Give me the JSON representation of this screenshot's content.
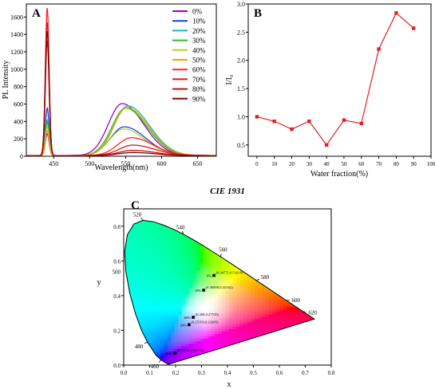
{
  "chart_data": [
    {
      "panel": "A",
      "type": "line",
      "xlabel": "Wavelength(nm)",
      "ylabel": "PL Intensity",
      "xlim": [
        412,
        676
      ],
      "ylim": [
        0,
        1750
      ],
      "xticks": [
        450,
        500,
        550,
        600,
        650
      ],
      "yticks": [
        0,
        200,
        400,
        600,
        800,
        1000,
        1200,
        1400,
        1600
      ],
      "legend_position": "top-right",
      "series": [
        {
          "name": "0%",
          "color": "#a000d0",
          "peak1": 250,
          "peak2": 597,
          "center2": 545
        },
        {
          "name": "10%",
          "color": "#1840e0",
          "peak1": 545,
          "peak2": 330,
          "center2": 548
        },
        {
          "name": "20%",
          "color": "#18b8b8",
          "peak1": 410,
          "peak2": 570,
          "center2": 553
        },
        {
          "name": "30%",
          "color": "#20c020",
          "peak1": 380,
          "peak2": 545,
          "center2": 550
        },
        {
          "name": "40%",
          "color": "#b8d020",
          "peak1": 330,
          "peak2": 305,
          "center2": 547
        },
        {
          "name": "50%",
          "color": "#f0a000",
          "peak1": 285,
          "peak2": 550,
          "center2": 552
        },
        {
          "name": "60%",
          "color": "#ff2020",
          "peak1": 1695,
          "peak2": 205,
          "center2": 558
        },
        {
          "name": "70%",
          "color": "#e01818",
          "peak1": 1530,
          "peak2": 120,
          "center2": 560
        },
        {
          "name": "80%",
          "color": "#c81010",
          "peak1": 1320,
          "peak2": 60,
          "center2": 560
        },
        {
          "name": "90%",
          "color": "#8b0000",
          "peak1": 1430,
          "peak2": 35,
          "center2": 560
        }
      ]
    },
    {
      "panel": "B",
      "type": "line",
      "xlabel": "Water fraction(%)",
      "ylabel": "I/I₀",
      "xlim": [
        -5,
        100
      ],
      "ylim": [
        0.3,
        3.0
      ],
      "xticks": [
        0,
        10,
        20,
        30,
        40,
        50,
        60,
        70,
        80,
        90,
        100
      ],
      "yticks": [
        0.5,
        1.0,
        1.5,
        2.0,
        2.5,
        3.0
      ],
      "color": "#e02020",
      "x": [
        0,
        10,
        20,
        30,
        40,
        50,
        60,
        70,
        80,
        90
      ],
      "y": [
        1.0,
        0.92,
        0.78,
        0.92,
        0.5,
        0.94,
        0.88,
        2.2,
        2.84,
        2.57
      ]
    },
    {
      "panel": "C",
      "type": "scatter",
      "title": "CIE 1931",
      "xlabel": "x",
      "ylabel": "y",
      "xlim": [
        0,
        0.8
      ],
      "ylim": [
        0,
        0.9
      ],
      "xticks": [
        0.0,
        0.1,
        0.2,
        0.3,
        0.4,
        0.5,
        0.6,
        0.7,
        0.8
      ],
      "yticks": [
        0.0,
        0.2,
        0.4,
        0.6,
        0.8
      ],
      "extra_yticks": [
        "500"
      ],
      "wavelength_labels": [
        {
          "label": "460",
          "x": 0.144,
          "y": 0.03
        },
        {
          "label": "480",
          "x": 0.091,
          "y": 0.133
        },
        {
          "label": "520",
          "x": 0.074,
          "y": 0.834
        },
        {
          "label": "540",
          "x": 0.23,
          "y": 0.754
        },
        {
          "label": "560",
          "x": 0.373,
          "y": 0.624
        },
        {
          "label": "580",
          "x": 0.512,
          "y": 0.487
        },
        {
          "label": "600",
          "x": 0.627,
          "y": 0.372
        },
        {
          "label": "620",
          "x": 0.691,
          "y": 0.308
        }
      ],
      "points": [
        {
          "label": "0%",
          "coord": "(0.34771,0.51618)",
          "x": 0.3477,
          "y": 0.5162
        },
        {
          "label": "10%",
          "coord": "(0.30809,0.43162)",
          "x": 0.3081,
          "y": 0.4316
        },
        {
          "label": "60%",
          "coord": "(0.268,0.27539)",
          "x": 0.268,
          "y": 0.2754
        },
        {
          "label": "20%",
          "coord": "(0.25193,0.23285)",
          "x": 0.2519,
          "y": 0.2329
        },
        {
          "label": "90%",
          "coord": "(0.19791,0.06790)",
          "x": 0.1979,
          "y": 0.0679
        }
      ]
    }
  ]
}
